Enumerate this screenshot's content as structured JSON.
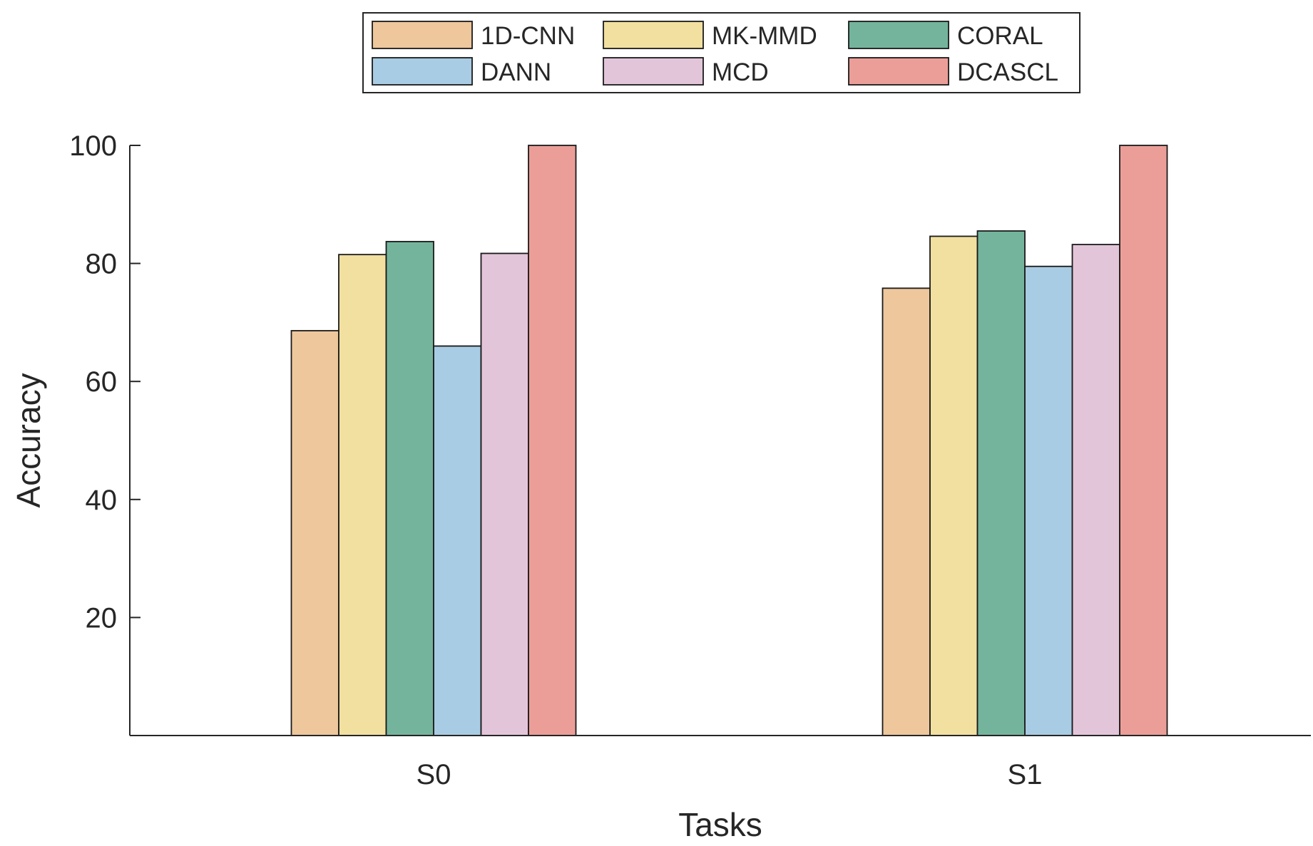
{
  "chart_data": {
    "type": "bar",
    "title": "",
    "xlabel": "Tasks",
    "ylabel": "Accuracy",
    "categories": [
      "S0",
      "S1"
    ],
    "ylim": [
      0,
      100
    ],
    "yticks": [
      20,
      40,
      60,
      80,
      100
    ],
    "legend_position": "top-center",
    "grid": false,
    "series": [
      {
        "name": "1D-CNN",
        "color": "#EEC79C",
        "values": [
          68.6,
          75.8
        ]
      },
      {
        "name": "MK-MMD",
        "color": "#F2E0A0",
        "values": [
          81.5,
          84.6
        ]
      },
      {
        "name": "CORAL",
        "color": "#74B49D",
        "values": [
          83.7,
          85.5
        ]
      },
      {
        "name": "DANN",
        "color": "#A8CCE3",
        "values": [
          66.0,
          79.5
        ]
      },
      {
        "name": "MCD",
        "color": "#E3C5DA",
        "values": [
          81.7,
          83.2
        ]
      },
      {
        "name": "DCASCL",
        "color": "#EB9E98",
        "values": [
          100,
          100
        ]
      }
    ]
  }
}
